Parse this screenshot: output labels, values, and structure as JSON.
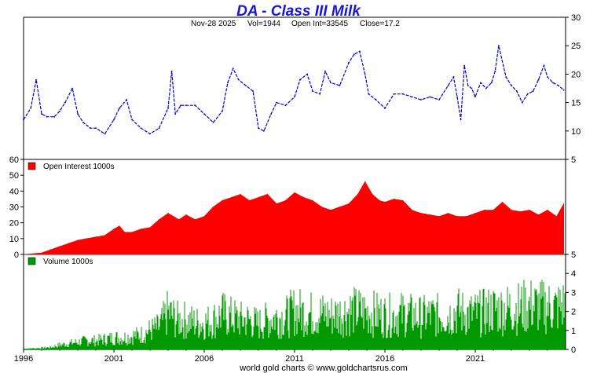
{
  "chart_data": {
    "type": "line",
    "title": "DA  -  Class III Milk",
    "stats": {
      "date": "Nov-28  2025",
      "volume": "Vol=1944",
      "open_interest": "Open Int=33545",
      "close": "Close=17.2"
    },
    "colors": {
      "title": "#1414e6",
      "price": "#0000cc",
      "open_interest": "#ff0000",
      "volume": "#009900"
    },
    "x_axis": {
      "ticks": [
        "1996",
        "2001",
        "2006",
        "2011",
        "2016",
        "2021"
      ],
      "tick_years": [
        1996,
        2001,
        2006,
        2011,
        2016,
        2021
      ],
      "range": [
        1996,
        2026
      ]
    },
    "panels": [
      {
        "name": "price",
        "ylim": [
          5,
          30
        ],
        "right_ticks": [
          "5",
          "10",
          "15",
          "20",
          "25",
          "30"
        ],
        "right_tick_values": [
          5,
          10,
          15,
          20,
          25,
          30
        ],
        "series": {
          "name": "Close",
          "x": [
            1996.0,
            1996.4,
            1996.7,
            1997.0,
            1997.3,
            1997.7,
            1998.0,
            1998.3,
            1998.7,
            1999.0,
            1999.3,
            1999.7,
            2000.0,
            2000.5,
            2001.0,
            2001.3,
            2001.7,
            2002.0,
            2002.5,
            2003.0,
            2003.5,
            2004.0,
            2004.2,
            2004.4,
            2004.7,
            2005.0,
            2005.5,
            2006.0,
            2006.5,
            2007.0,
            2007.3,
            2007.6,
            2007.9,
            2008.3,
            2008.7,
            2009.0,
            2009.3,
            2009.7,
            2010.0,
            2010.5,
            2011.0,
            2011.3,
            2011.7,
            2012.0,
            2012.4,
            2012.7,
            2013.0,
            2013.5,
            2014.0,
            2014.3,
            2014.6,
            2014.9,
            2015.1,
            2015.5,
            2016.0,
            2016.5,
            2017.0,
            2017.5,
            2018.0,
            2018.5,
            2019.0,
            2019.5,
            2019.8,
            2020.0,
            2020.2,
            2020.4,
            2020.6,
            2020.8,
            2021.0,
            2021.3,
            2021.6,
            2021.9,
            2022.1,
            2022.3,
            2022.7,
            2023.0,
            2023.3,
            2023.6,
            2023.9,
            2024.2,
            2024.5,
            2024.8,
            2025.0,
            2025.3,
            2025.6,
            2025.9
          ],
          "values": [
            12.0,
            14.0,
            19.0,
            13.0,
            12.5,
            12.5,
            13.5,
            15.0,
            17.5,
            13.0,
            11.5,
            10.5,
            10.5,
            9.5,
            12.0,
            14.0,
            15.5,
            12.0,
            10.5,
            9.5,
            10.5,
            14.0,
            20.5,
            13.0,
            14.5,
            14.5,
            14.5,
            13.0,
            11.5,
            13.5,
            18.5,
            21.0,
            19.0,
            18.0,
            17.0,
            10.5,
            10.0,
            13.0,
            15.0,
            14.5,
            16.0,
            19.0,
            20.0,
            17.0,
            16.5,
            20.5,
            18.5,
            18.0,
            22.0,
            23.5,
            24.0,
            20.0,
            16.5,
            15.5,
            14.0,
            16.5,
            16.5,
            16.0,
            15.5,
            16.0,
            15.5,
            18.0,
            19.5,
            16.0,
            12.0,
            21.5,
            18.0,
            17.5,
            16.0,
            18.5,
            17.5,
            18.5,
            20.5,
            25.0,
            19.5,
            18.0,
            17.0,
            15.0,
            16.5,
            17.0,
            19.0,
            21.5,
            19.5,
            18.5,
            18.0,
            17.2
          ]
        }
      },
      {
        "name": "open_interest",
        "legend": "Open Interest  1000s",
        "ylim": [
          0,
          60
        ],
        "left_ticks": [
          "0",
          "10",
          "20",
          "30",
          "40",
          "50",
          "60"
        ],
        "left_tick_values": [
          0,
          10,
          20,
          30,
          40,
          50,
          60
        ],
        "series": {
          "name": "Open Interest",
          "x": [
            1996.0,
            1997.0,
            1997.5,
            1998.0,
            1998.5,
            1999.0,
            1999.5,
            2000.0,
            2000.5,
            2001.0,
            2001.3,
            2001.6,
            2002.0,
            2002.5,
            2003.0,
            2003.5,
            2004.0,
            2004.3,
            2004.6,
            2005.0,
            2005.5,
            2006.0,
            2006.5,
            2007.0,
            2007.5,
            2008.0,
            2008.5,
            2009.0,
            2009.5,
            2010.0,
            2010.5,
            2011.0,
            2011.5,
            2012.0,
            2012.5,
            2013.0,
            2013.5,
            2014.0,
            2014.5,
            2014.9,
            2015.3,
            2015.7,
            2016.0,
            2016.5,
            2017.0,
            2017.5,
            2018.0,
            2018.5,
            2019.0,
            2019.5,
            2020.0,
            2020.5,
            2021.0,
            2021.5,
            2022.0,
            2022.5,
            2023.0,
            2023.5,
            2024.0,
            2024.5,
            2025.0,
            2025.5,
            2025.9
          ],
          "values": [
            0.0,
            1.0,
            3.0,
            5.0,
            7.0,
            9.0,
            10.0,
            11.0,
            12.0,
            16.0,
            18.0,
            14.0,
            14.0,
            16.0,
            17.0,
            22.0,
            26.0,
            24.0,
            22.0,
            25.0,
            22.0,
            24.0,
            30.0,
            34.0,
            36.0,
            38.0,
            34.0,
            36.0,
            38.0,
            32.0,
            34.0,
            39.0,
            36.0,
            34.0,
            30.0,
            28.0,
            30.0,
            32.0,
            38.0,
            46.0,
            38.0,
            34.0,
            33.0,
            35.0,
            34.0,
            28.0,
            26.0,
            25.0,
            24.0,
            26.0,
            24.0,
            24.0,
            26.0,
            28.0,
            28.0,
            33.0,
            28.0,
            27.0,
            28.0,
            25.0,
            28.0,
            24.0,
            32.0
          ]
        }
      },
      {
        "name": "volume",
        "legend": "Volume  1000s",
        "ylim": [
          0,
          5
        ],
        "right_ticks": [
          "0",
          "1",
          "2",
          "3",
          "4",
          "5"
        ],
        "right_tick_values": [
          0,
          1,
          2,
          3,
          4,
          5
        ],
        "series": {
          "name": "Volume",
          "x": [
            1996.0,
            1997.0,
            1997.5,
            1998.0,
            1998.5,
            1999.0,
            1999.5,
            2000.0,
            2000.5,
            2001.0,
            2001.5,
            2002.0,
            2002.5,
            2003.0,
            2003.5,
            2004.0,
            2004.5,
            2005.0,
            2005.5,
            2006.0,
            2006.5,
            2007.0,
            2007.5,
            2008.0,
            2008.5,
            2009.0,
            2009.5,
            2010.0,
            2010.5,
            2011.0,
            2011.5,
            2012.0,
            2012.5,
            2013.0,
            2013.5,
            2014.0,
            2014.5,
            2015.0,
            2015.5,
            2016.0,
            2016.5,
            2017.0,
            2017.5,
            2018.0,
            2018.5,
            2019.0,
            2019.5,
            2020.0,
            2020.5,
            2021.0,
            2021.5,
            2022.0,
            2022.5,
            2023.0,
            2023.5,
            2024.0,
            2024.5,
            2025.0,
            2025.5,
            2025.9
          ],
          "values": [
            0.05,
            0.1,
            0.15,
            0.3,
            0.4,
            0.5,
            0.6,
            0.6,
            0.7,
            0.8,
            0.8,
            0.9,
            1.0,
            1.3,
            1.5,
            2.5,
            2.0,
            2.0,
            1.8,
            1.8,
            2.0,
            2.4,
            2.2,
            2.0,
            2.0,
            1.7,
            2.0,
            2.2,
            2.2,
            2.6,
            2.5,
            2.4,
            2.4,
            2.3,
            2.4,
            2.6,
            2.6,
            2.5,
            2.4,
            2.3,
            2.3,
            2.4,
            2.3,
            2.2,
            2.3,
            2.3,
            2.3,
            2.6,
            2.4,
            2.4,
            2.5,
            2.7,
            2.7,
            2.8,
            2.8,
            3.0,
            2.9,
            2.9,
            2.8,
            3.0
          ]
        }
      }
    ]
  },
  "footer": {
    "credit": "world gold charts © www.goldchartsrus.com"
  }
}
